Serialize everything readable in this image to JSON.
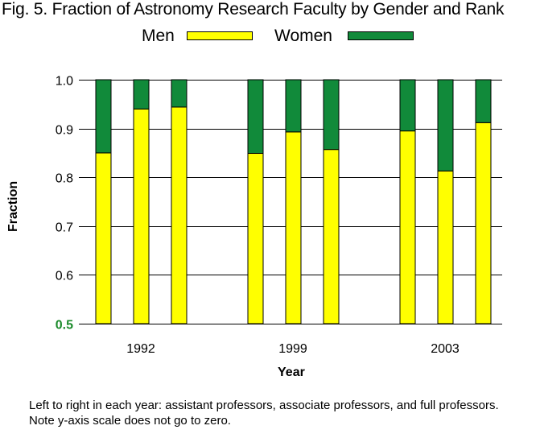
{
  "chart_data": {
    "type": "bar",
    "stacked": true,
    "title": "Fig. 5. Fraction of Astronomy Research Faculty by Gender and Rank",
    "xlabel": "Year",
    "ylabel": "Fraction",
    "ylim": [
      0.5,
      1.0
    ],
    "y_ticks": [
      "0.5",
      "0.6",
      "0.7",
      "0.8",
      "0.9",
      "1.0"
    ],
    "grid": true,
    "legend_placement": "top",
    "categories": [
      "1992",
      "1999",
      "2003"
    ],
    "bars_per_category": 3,
    "series": [
      {
        "name": "Men",
        "color": "#ffff00",
        "values": [
          [
            0.85,
            0.94,
            0.944
          ],
          [
            0.849,
            0.893,
            0.857
          ],
          [
            0.895,
            0.813,
            0.912
          ]
        ]
      },
      {
        "name": "Women",
        "color": "#118a3a",
        "values": [
          [
            0.15,
            0.06,
            0.056
          ],
          [
            0.151,
            0.107,
            0.143
          ],
          [
            0.105,
            0.187,
            0.088
          ]
        ]
      }
    ],
    "highlight_tick_color": "#1a8a2a",
    "note": "Left to right in each year: assistant professors, associate professors, and full professors. Note y-axis scale does not go to zero."
  }
}
